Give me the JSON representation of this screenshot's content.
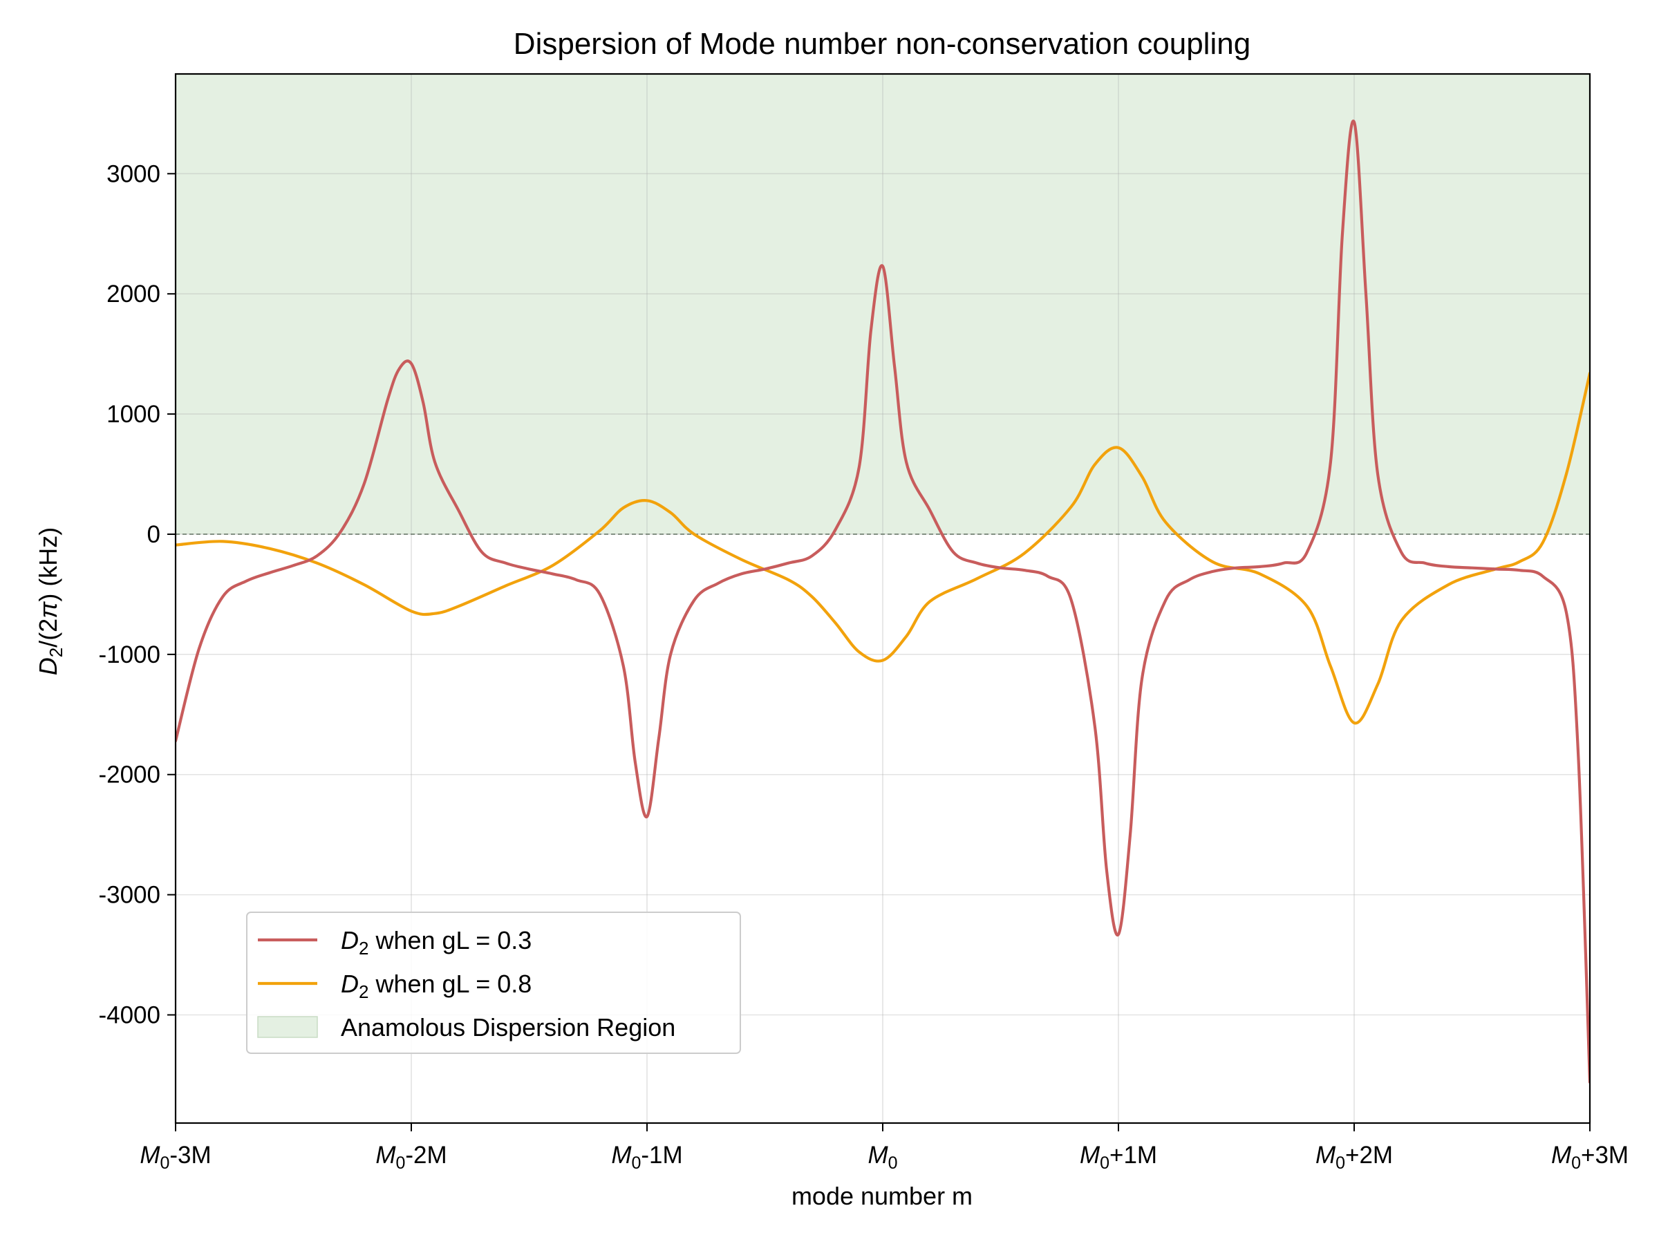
{
  "chart_data": {
    "type": "line",
    "title": "Dispersion of Mode number non-conservation coupling",
    "xlabel": "mode number m",
    "ylabel": "D₂/(2π) (kHz)",
    "xlim": [
      -3,
      3
    ],
    "ylim": [
      -4900,
      3830
    ],
    "grid": true,
    "legend_position": "lower-left",
    "x_ticks": [
      {
        "value": -3,
        "label": "M₀-3M"
      },
      {
        "value": -2,
        "label": "M₀-2M"
      },
      {
        "value": -1,
        "label": "M₀-1M"
      },
      {
        "value": 0,
        "label": "M₀"
      },
      {
        "value": 1,
        "label": "M₀+1M"
      },
      {
        "value": 2,
        "label": "M₀+2M"
      },
      {
        "value": 3,
        "label": "M₀+3M"
      }
    ],
    "y_ticks": [
      {
        "value": 3000,
        "label": "3000"
      },
      {
        "value": 2000,
        "label": "2000"
      },
      {
        "value": 1000,
        "label": "1000"
      },
      {
        "value": 0,
        "label": "0"
      },
      {
        "value": -1000,
        "label": "-1000"
      },
      {
        "value": -2000,
        "label": "-2000"
      },
      {
        "value": -3000,
        "label": "-3000"
      },
      {
        "value": -4000,
        "label": "-4000"
      }
    ],
    "shaded_region": {
      "name": "Anamolous Dispersion Region",
      "y_from": 0,
      "y_to": 3830,
      "color": "#e4f0e2"
    },
    "zero_line": {
      "y": 0,
      "style": "dashed",
      "color": "#6b7a6b"
    },
    "series": [
      {
        "name": "D₂ when gL = 0.3",
        "color": "#c85c5c",
        "x": [
          -3.0,
          -2.9,
          -2.8,
          -2.7,
          -2.6,
          -2.5,
          -2.4,
          -2.3,
          -2.2,
          -2.1,
          -2.05,
          -2.0,
          -1.95,
          -1.9,
          -1.8,
          -1.7,
          -1.6,
          -1.5,
          -1.4,
          -1.3,
          -1.2,
          -1.1,
          -1.05,
          -1.0,
          -0.95,
          -0.9,
          -0.8,
          -0.7,
          -0.6,
          -0.5,
          -0.4,
          -0.3,
          -0.2,
          -0.1,
          -0.05,
          0.0,
          0.05,
          0.1,
          0.2,
          0.3,
          0.4,
          0.5,
          0.6,
          0.7,
          0.8,
          0.9,
          0.95,
          1.0,
          1.05,
          1.1,
          1.2,
          1.3,
          1.4,
          1.5,
          1.6,
          1.7,
          1.8,
          1.9,
          1.95,
          2.0,
          2.05,
          2.1,
          2.2,
          2.3,
          2.4,
          2.5,
          2.6,
          2.7,
          2.8,
          2.9,
          2.95,
          3.0
        ],
        "y": [
          -1720,
          -950,
          -520,
          -390,
          -320,
          -260,
          -180,
          20,
          420,
          1120,
          1380,
          1420,
          1100,
          600,
          200,
          -150,
          -240,
          -290,
          -330,
          -380,
          -500,
          -1100,
          -1900,
          -2350,
          -1700,
          -1000,
          -550,
          -410,
          -330,
          -290,
          -240,
          -180,
          40,
          560,
          1700,
          2230,
          1400,
          600,
          200,
          -150,
          -240,
          -280,
          -300,
          -350,
          -550,
          -1600,
          -2800,
          -3330,
          -2500,
          -1200,
          -550,
          -380,
          -310,
          -280,
          -270,
          -240,
          -150,
          600,
          2500,
          3430,
          2000,
          500,
          -150,
          -240,
          -270,
          -280,
          -290,
          -300,
          -350,
          -650,
          -1800,
          -4560
        ]
      },
      {
        "name": "D₂ when gL = 0.8",
        "color": "#f2a20c",
        "x": [
          -3.0,
          -2.8,
          -2.6,
          -2.4,
          -2.2,
          -2.0,
          -1.9,
          -1.8,
          -1.6,
          -1.4,
          -1.2,
          -1.1,
          -1.0,
          -0.9,
          -0.8,
          -0.6,
          -0.4,
          -0.3,
          -0.2,
          -0.1,
          0.0,
          0.1,
          0.2,
          0.4,
          0.6,
          0.8,
          0.9,
          1.0,
          1.1,
          1.2,
          1.4,
          1.6,
          1.8,
          1.9,
          2.0,
          2.1,
          2.2,
          2.4,
          2.6,
          2.7,
          2.8,
          2.9,
          3.0
        ],
        "y": [
          -90,
          -60,
          -120,
          -240,
          -420,
          -640,
          -660,
          -600,
          -430,
          -260,
          30,
          220,
          280,
          180,
          0,
          -210,
          -380,
          -520,
          -740,
          -980,
          -1050,
          -850,
          -560,
          -370,
          -160,
          230,
          580,
          720,
          480,
          100,
          -230,
          -330,
          -600,
          -1100,
          -1570,
          -1250,
          -720,
          -420,
          -290,
          -230,
          -70,
          500,
          1340
        ]
      }
    ]
  }
}
